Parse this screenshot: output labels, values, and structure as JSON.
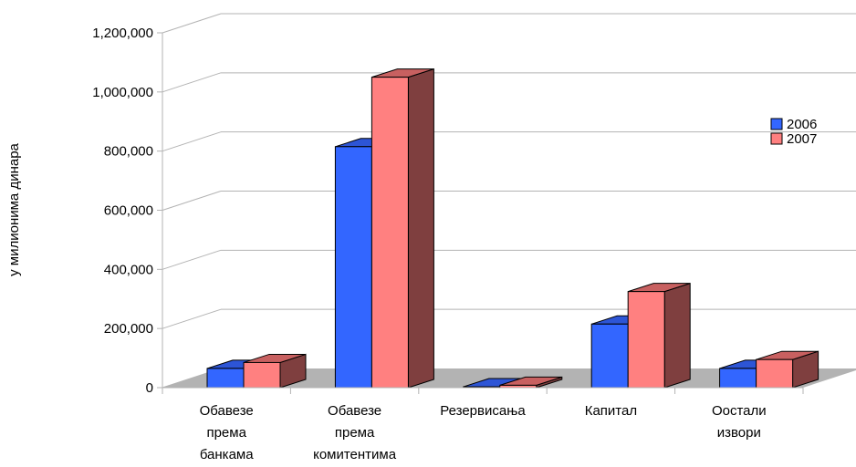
{
  "chart_data": {
    "type": "bar",
    "title": "",
    "xlabel": "",
    "ylabel": "у милионима динара",
    "ylim": [
      0,
      1200000
    ],
    "yticks": [
      0,
      200000,
      400000,
      600000,
      800000,
      1000000,
      1200000
    ],
    "ytick_labels": [
      "0",
      "200,000",
      "400,000",
      "600,000",
      "800,000",
      "1,000,000",
      "1,200,000"
    ],
    "categories": [
      [
        "Обавезе",
        "према",
        "банкама"
      ],
      [
        "Обавезе",
        "према",
        "комитентима"
      ],
      [
        "Резервисања"
      ],
      [
        "Капитал"
      ],
      [
        "Оостали",
        "извори"
      ]
    ],
    "series": [
      {
        "name": "2006",
        "values": [
          65000,
          815000,
          3000,
          215000,
          65000
        ],
        "color": "#3366ff",
        "side": "#1f3f9e",
        "top": "#2d55d6"
      },
      {
        "name": "2007",
        "values": [
          85000,
          1050000,
          8000,
          325000,
          95000
        ],
        "color": "#ff8080",
        "side": "#7f3f3f",
        "top": "#c86060"
      }
    ],
    "legend_position": "right",
    "grid": true,
    "three_d": true
  }
}
